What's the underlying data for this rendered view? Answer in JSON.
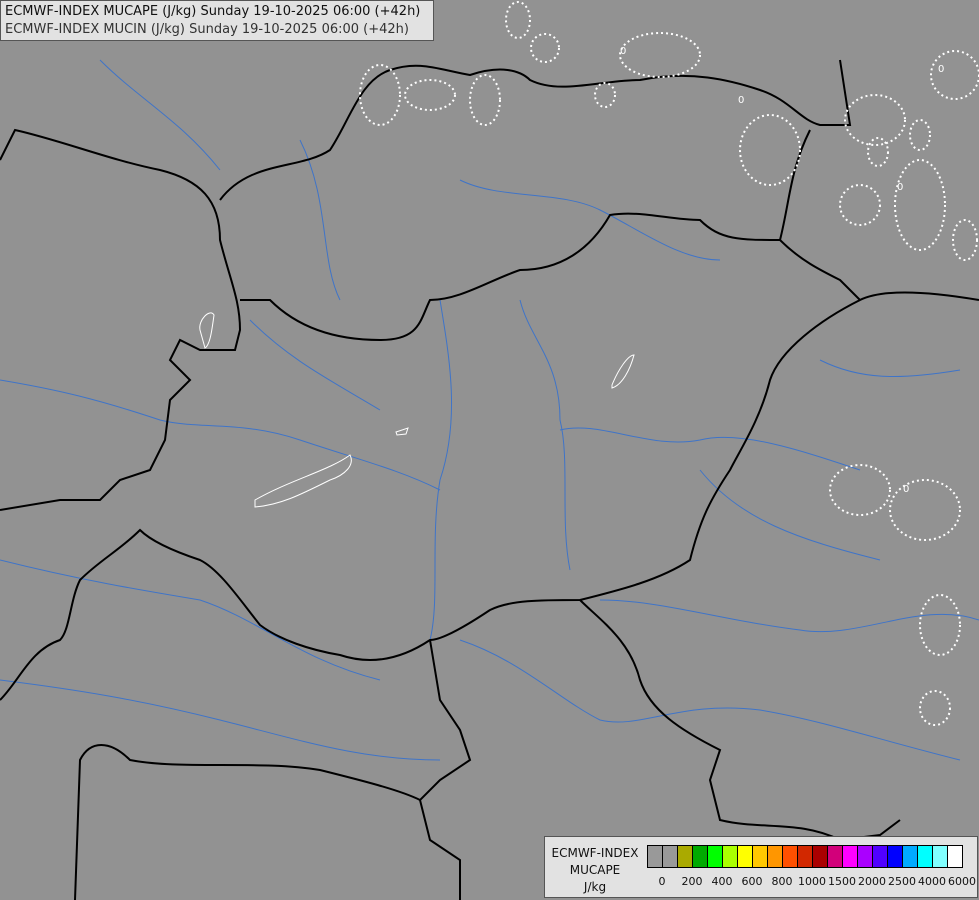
{
  "title": {
    "line1": "ECMWF-INDEX MUCAPE (J/kg) Sunday 19-10-2025 06:00 (+42h)",
    "line2": "ECMWF-INDEX MUCIN (J/kg) Sunday 19-10-2025 06:00 (+42h)"
  },
  "map": {
    "background_color": "#929292",
    "border_color": "#000000",
    "river_color": "#3f74c8",
    "contour_color": "#ffffff",
    "contour_label": "0"
  },
  "legend": {
    "line1": "ECMWF-INDEX",
    "line2": "MUCAPE",
    "line3": "J/kg",
    "colors": [
      "#999999",
      "#999999",
      "#aaaa00",
      "#00aa00",
      "#00ff00",
      "#aaff00",
      "#ffff00",
      "#ffc800",
      "#ff9600",
      "#ff5000",
      "#d22800",
      "#aa0000",
      "#d2007a",
      "#ff00ff",
      "#aa00ff",
      "#5000ff",
      "#0000ff",
      "#00aaff",
      "#00ffff",
      "#80ffff",
      "#ffffff"
    ],
    "ticks": [
      "0",
      "200",
      "400",
      "600",
      "800",
      "1000",
      "1500",
      "2000",
      "2500",
      "4000",
      "6000"
    ]
  }
}
